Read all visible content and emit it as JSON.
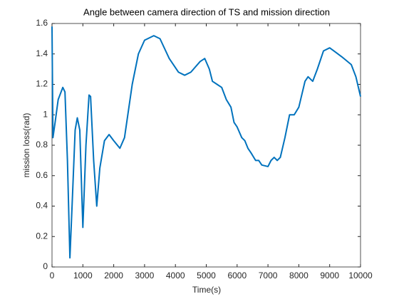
{
  "chart_data": {
    "type": "line",
    "title": "Angle between camera direction of TS and mission direction",
    "x_label": "Time(s)",
    "y_label": "mission loss(rad)",
    "x": [
      0,
      30,
      100,
      200,
      350,
      420,
      500,
      580,
      650,
      750,
      820,
      900,
      1000,
      1100,
      1200,
      1250,
      1350,
      1450,
      1550,
      1700,
      1850,
      2000,
      2200,
      2350,
      2600,
      2800,
      3000,
      3300,
      3500,
      3800,
      4100,
      4300,
      4500,
      4800,
      4950,
      5100,
      5200,
      5350,
      5500,
      5650,
      5800,
      5900,
      6000,
      6150,
      6250,
      6350,
      6450,
      6600,
      6700,
      6800,
      7000,
      7100,
      7200,
      7300,
      7400,
      7550,
      7700,
      7850,
      8000,
      8200,
      8300,
      8450,
      8600,
      8800,
      9000,
      9200,
      9400,
      9700,
      9850,
      10000
    ],
    "series": [
      {
        "name": "mission loss",
        "color": "#0072bd",
        "values": [
          1.58,
          0.85,
          0.95,
          1.1,
          1.18,
          1.15,
          0.7,
          0.06,
          0.4,
          0.9,
          0.98,
          0.9,
          0.26,
          0.8,
          1.13,
          1.12,
          0.7,
          0.4,
          0.65,
          0.83,
          0.87,
          0.83,
          0.78,
          0.85,
          1.2,
          1.4,
          1.49,
          1.52,
          1.5,
          1.37,
          1.28,
          1.26,
          1.28,
          1.35,
          1.37,
          1.3,
          1.22,
          1.2,
          1.18,
          1.1,
          1.05,
          0.95,
          0.92,
          0.85,
          0.83,
          0.78,
          0.75,
          0.7,
          0.7,
          0.67,
          0.66,
          0.7,
          0.72,
          0.7,
          0.72,
          0.85,
          1.0,
          1.0,
          1.05,
          1.22,
          1.25,
          1.22,
          1.3,
          1.42,
          1.44,
          1.41,
          1.38,
          1.33,
          1.25,
          1.12
        ]
      }
    ],
    "xlim": [
      0,
      10000
    ],
    "xticks": [
      0,
      1000,
      2000,
      3000,
      4000,
      5000,
      6000,
      7000,
      8000,
      9000,
      10000
    ],
    "ylim": [
      0,
      1.6
    ],
    "yticks": [
      0,
      0.2,
      0.4,
      0.6,
      0.8,
      1,
      1.2,
      1.4,
      1.6
    ],
    "grid": false
  }
}
